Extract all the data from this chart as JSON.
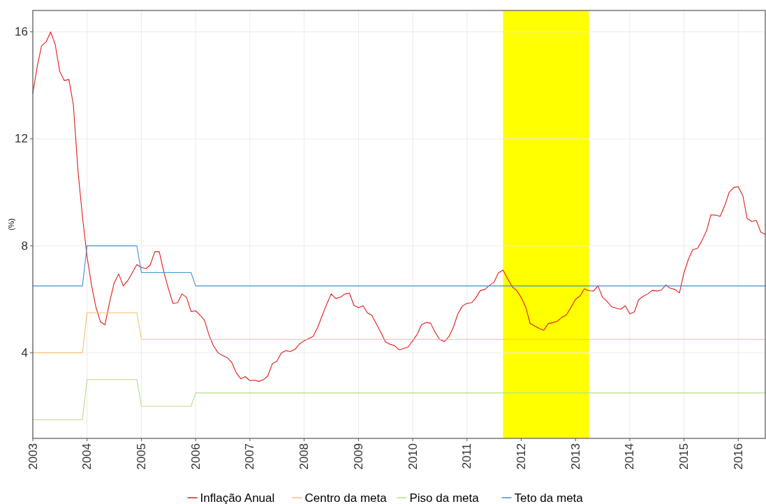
{
  "chart_data": {
    "type": "line",
    "ylabel": "(%)",
    "x": [
      "2003-01",
      "2003-02",
      "2003-03",
      "2003-04",
      "2003-05",
      "2003-06",
      "2003-07",
      "2003-08",
      "2003-09",
      "2003-10",
      "2003-11",
      "2003-12",
      "2004-01",
      "2004-02",
      "2004-03",
      "2004-04",
      "2004-05",
      "2004-06",
      "2004-07",
      "2004-08",
      "2004-09",
      "2004-10",
      "2004-11",
      "2004-12",
      "2005-01",
      "2005-02",
      "2005-03",
      "2005-04",
      "2005-05",
      "2005-06",
      "2005-07",
      "2005-08",
      "2005-09",
      "2005-10",
      "2005-11",
      "2005-12",
      "2006-01",
      "2006-02",
      "2006-03",
      "2006-04",
      "2006-05",
      "2006-06",
      "2006-07",
      "2006-08",
      "2006-09",
      "2006-10",
      "2006-11",
      "2006-12",
      "2007-01",
      "2007-02",
      "2007-03",
      "2007-04",
      "2007-05",
      "2007-06",
      "2007-07",
      "2007-08",
      "2007-09",
      "2007-10",
      "2007-11",
      "2007-12",
      "2008-01",
      "2008-02",
      "2008-03",
      "2008-04",
      "2008-05",
      "2008-06",
      "2008-07",
      "2008-08",
      "2008-09",
      "2008-10",
      "2008-11",
      "2008-12",
      "2009-01",
      "2009-02",
      "2009-03",
      "2009-04",
      "2009-05",
      "2009-06",
      "2009-07",
      "2009-08",
      "2009-09",
      "2009-10",
      "2009-11",
      "2009-12",
      "2010-01",
      "2010-02",
      "2010-03",
      "2010-04",
      "2010-05",
      "2010-06",
      "2010-07",
      "2010-08",
      "2010-09",
      "2010-10",
      "2010-11",
      "2010-12",
      "2011-01",
      "2011-02",
      "2011-03",
      "2011-04",
      "2011-05",
      "2011-06",
      "2011-07",
      "2011-08",
      "2011-09",
      "2011-10",
      "2011-11",
      "2011-12",
      "2012-01",
      "2012-02",
      "2012-03",
      "2012-04",
      "2012-05",
      "2012-06",
      "2012-07",
      "2012-08",
      "2012-09",
      "2012-10",
      "2012-11",
      "2012-12",
      "2013-01",
      "2013-02",
      "2013-03",
      "2013-04",
      "2013-05",
      "2013-06",
      "2013-07",
      "2013-08",
      "2013-09",
      "2013-10",
      "2013-11",
      "2013-12",
      "2014-01",
      "2014-02",
      "2014-03",
      "2014-04",
      "2014-05",
      "2014-06",
      "2014-07",
      "2014-08",
      "2014-09",
      "2014-10",
      "2014-11",
      "2014-12",
      "2015-01",
      "2015-02",
      "2015-03",
      "2015-04",
      "2015-05",
      "2015-06",
      "2015-07",
      "2015-08",
      "2015-09",
      "2015-10",
      "2015-11",
      "2015-12",
      "2016-01",
      "2016-02",
      "2016-03",
      "2016-04",
      "2016-05",
      "2016-06",
      "2016-07"
    ],
    "series": [
      {
        "name": "Inflação Anual",
        "color": "#e31a1c",
        "values": [
          13.7,
          14.74,
          15.48,
          15.63,
          16.0,
          15.52,
          14.52,
          14.18,
          14.22,
          13.27,
          10.8,
          9.1,
          7.6,
          6.5,
          5.7,
          5.15,
          5.05,
          5.9,
          6.6,
          6.95,
          6.5,
          6.7,
          7.0,
          7.3,
          7.19,
          7.15,
          7.28,
          7.78,
          7.78,
          7.02,
          6.41,
          5.85,
          5.87,
          6.2,
          6.07,
          5.54,
          5.57,
          5.4,
          5.22,
          4.66,
          4.26,
          4.0,
          3.9,
          3.82,
          3.64,
          3.25,
          3.03,
          3.11,
          2.96,
          2.98,
          2.93,
          2.99,
          3.13,
          3.59,
          3.68,
          4.0,
          4.08,
          4.05,
          4.13,
          4.33,
          4.45,
          4.53,
          4.61,
          4.95,
          5.38,
          5.82,
          6.2,
          6.03,
          6.08,
          6.2,
          6.23,
          5.78,
          5.69,
          5.76,
          5.5,
          5.4,
          5.08,
          4.76,
          4.41,
          4.32,
          4.27,
          4.11,
          4.16,
          4.22,
          4.45,
          4.7,
          5.05,
          5.13,
          5.11,
          4.76,
          4.5,
          4.42,
          4.6,
          4.95,
          5.46,
          5.75,
          5.85,
          5.87,
          6.05,
          6.33,
          6.37,
          6.52,
          6.63,
          6.99,
          7.09,
          6.78,
          6.47,
          6.33,
          6.07,
          5.7,
          5.1,
          5.0,
          4.91,
          4.84,
          5.09,
          5.13,
          5.18,
          5.33,
          5.42,
          5.7,
          6.0,
          6.13,
          6.39,
          6.32,
          6.31,
          6.5,
          6.08,
          5.92,
          5.72,
          5.67,
          5.63,
          5.76,
          5.46,
          5.53,
          5.98,
          6.11,
          6.2,
          6.33,
          6.31,
          6.34,
          6.54,
          6.41,
          6.37,
          6.24,
          7.0,
          7.52,
          7.86,
          7.9,
          8.19,
          8.55,
          9.16,
          9.15,
          9.1,
          9.49,
          10.0,
          10.18,
          10.21,
          9.87,
          9.02,
          8.91,
          8.95,
          8.51,
          8.43
        ]
      },
      {
        "name": "Centro da meta",
        "color": "#fdbf6f",
        "x": [
          "2003-01",
          "2003-12",
          "2004-01",
          "2004-12",
          "2005-01",
          "2005-12",
          "2006-01",
          "2016-07"
        ],
        "values": [
          4,
          4,
          5.5,
          5.5,
          4.5,
          4.5,
          4.5,
          4.5
        ]
      },
      {
        "name": "Piso da meta",
        "color": "#b2df8a",
        "x": [
          "2003-01",
          "2003-12",
          "2004-01",
          "2004-12",
          "2005-01",
          "2005-12",
          "2006-01",
          "2016-07"
        ],
        "values": [
          1.5,
          1.5,
          3,
          3,
          2,
          2,
          2.5,
          2.5
        ]
      },
      {
        "name": "Teto da meta",
        "color": "#3f93cf",
        "x": [
          "2003-01",
          "2003-12",
          "2004-01",
          "2004-12",
          "2005-01",
          "2005-12",
          "2006-01",
          "2016-07"
        ],
        "values": [
          6.5,
          6.5,
          8,
          8,
          7,
          7,
          6.5,
          6.5
        ]
      }
    ],
    "bands": [
      {
        "axis": "x",
        "from": "2011-09",
        "to": "2013-04",
        "color": "#ffff00"
      }
    ],
    "xlim": [
      "2003-01",
      "2016-07"
    ],
    "xticks": [
      "2003",
      "2004",
      "2005",
      "2006",
      "2007",
      "2008",
      "2009",
      "2010",
      "2011",
      "2012",
      "2013",
      "2014",
      "2015",
      "2016"
    ],
    "ylim": [
      0.8,
      16.8
    ],
    "yticks": [
      4,
      8,
      12,
      16
    ],
    "grid": true,
    "legend": "bottom"
  }
}
